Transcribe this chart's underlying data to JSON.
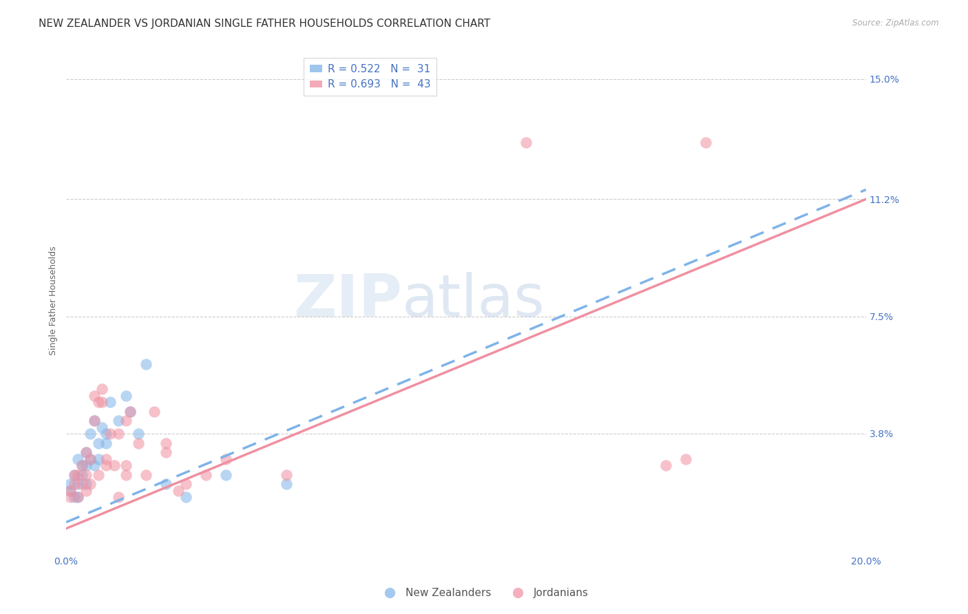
{
  "title": "NEW ZEALANDER VS JORDANIAN SINGLE FATHER HOUSEHOLDS CORRELATION CHART",
  "source": "Source: ZipAtlas.com",
  "ylabel": "Single Father Households",
  "xlim": [
    0.0,
    0.2
  ],
  "ylim": [
    0.0,
    0.16
  ],
  "xticks": [
    0.0,
    0.04,
    0.08,
    0.12,
    0.16,
    0.2
  ],
  "xticklabels": [
    "0.0%",
    "",
    "",
    "",
    "",
    "20.0%"
  ],
  "ytick_values": [
    0.0,
    0.038,
    0.075,
    0.112,
    0.15
  ],
  "ytick_labels": [
    "",
    "3.8%",
    "7.5%",
    "11.2%",
    "15.0%"
  ],
  "watermark_zip": "ZIP",
  "watermark_atlas": "atlas",
  "nz_color": "#7eb3e8",
  "jordan_color": "#f08fa0",
  "nz_R": 0.522,
  "nz_N": 31,
  "jordan_R": 0.693,
  "jordan_N": 43,
  "nz_scatter": [
    [
      0.001,
      0.02
    ],
    [
      0.001,
      0.022
    ],
    [
      0.002,
      0.018
    ],
    [
      0.002,
      0.025
    ],
    [
      0.003,
      0.022
    ],
    [
      0.003,
      0.03
    ],
    [
      0.003,
      0.018
    ],
    [
      0.004,
      0.025
    ],
    [
      0.004,
      0.028
    ],
    [
      0.005,
      0.032
    ],
    [
      0.005,
      0.022
    ],
    [
      0.005,
      0.028
    ],
    [
      0.006,
      0.038
    ],
    [
      0.006,
      0.03
    ],
    [
      0.007,
      0.042
    ],
    [
      0.007,
      0.028
    ],
    [
      0.008,
      0.035
    ],
    [
      0.008,
      0.03
    ],
    [
      0.009,
      0.04
    ],
    [
      0.01,
      0.038
    ],
    [
      0.01,
      0.035
    ],
    [
      0.011,
      0.048
    ],
    [
      0.013,
      0.042
    ],
    [
      0.015,
      0.05
    ],
    [
      0.016,
      0.045
    ],
    [
      0.018,
      0.038
    ],
    [
      0.02,
      0.06
    ],
    [
      0.025,
      0.022
    ],
    [
      0.03,
      0.018
    ],
    [
      0.04,
      0.025
    ],
    [
      0.055,
      0.022
    ]
  ],
  "jordan_scatter": [
    [
      0.001,
      0.02
    ],
    [
      0.001,
      0.018
    ],
    [
      0.002,
      0.022
    ],
    [
      0.002,
      0.025
    ],
    [
      0.003,
      0.018
    ],
    [
      0.003,
      0.025
    ],
    [
      0.004,
      0.022
    ],
    [
      0.004,
      0.028
    ],
    [
      0.005,
      0.02
    ],
    [
      0.005,
      0.025
    ],
    [
      0.005,
      0.032
    ],
    [
      0.006,
      0.022
    ],
    [
      0.006,
      0.03
    ],
    [
      0.007,
      0.05
    ],
    [
      0.007,
      0.042
    ],
    [
      0.008,
      0.025
    ],
    [
      0.008,
      0.048
    ],
    [
      0.009,
      0.052
    ],
    [
      0.009,
      0.048
    ],
    [
      0.01,
      0.03
    ],
    [
      0.01,
      0.028
    ],
    [
      0.011,
      0.038
    ],
    [
      0.012,
      0.028
    ],
    [
      0.013,
      0.038
    ],
    [
      0.013,
      0.018
    ],
    [
      0.015,
      0.042
    ],
    [
      0.015,
      0.025
    ],
    [
      0.015,
      0.028
    ],
    [
      0.016,
      0.045
    ],
    [
      0.018,
      0.035
    ],
    [
      0.02,
      0.025
    ],
    [
      0.022,
      0.045
    ],
    [
      0.025,
      0.032
    ],
    [
      0.025,
      0.035
    ],
    [
      0.028,
      0.02
    ],
    [
      0.03,
      0.022
    ],
    [
      0.035,
      0.025
    ],
    [
      0.04,
      0.03
    ],
    [
      0.055,
      0.025
    ],
    [
      0.115,
      0.13
    ],
    [
      0.15,
      0.028
    ],
    [
      0.155,
      0.03
    ],
    [
      0.16,
      0.13
    ]
  ],
  "nz_line_x": [
    0.0,
    0.2
  ],
  "nz_line_y": [
    0.01,
    0.115
  ],
  "jordan_line_x": [
    0.0,
    0.2
  ],
  "jordan_line_y": [
    0.008,
    0.112
  ],
  "grid_color": "#cccccc",
  "title_fontsize": 11,
  "axis_label_fontsize": 9,
  "tick_fontsize": 10,
  "tick_color": "#4472c4",
  "legend_fontsize": 11
}
